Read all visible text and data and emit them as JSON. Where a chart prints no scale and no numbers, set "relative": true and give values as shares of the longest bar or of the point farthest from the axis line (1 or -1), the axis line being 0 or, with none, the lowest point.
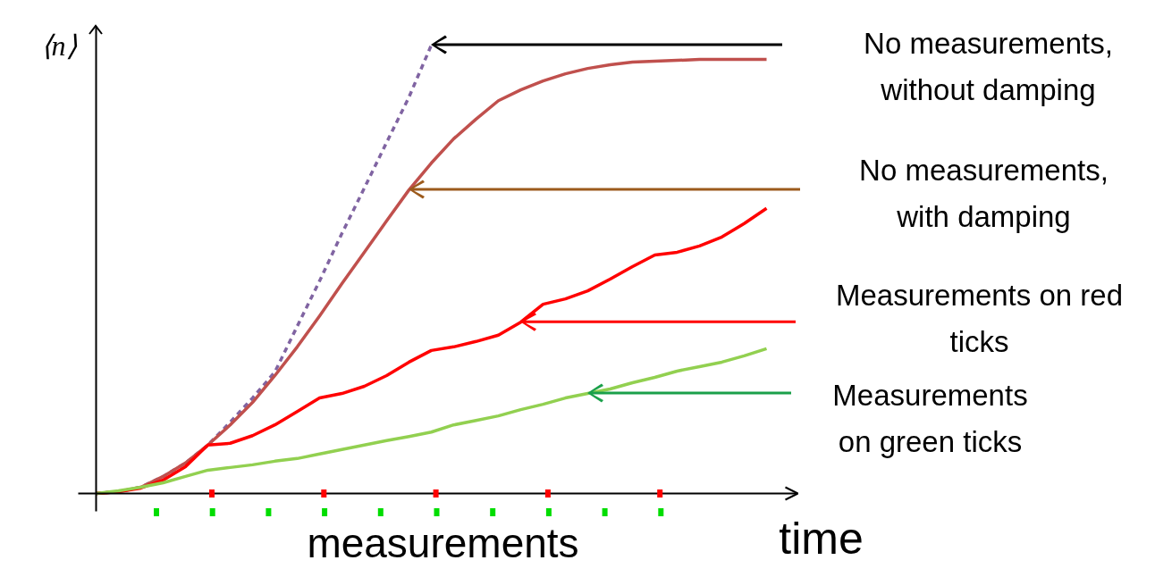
{
  "chart_data": {
    "type": "line",
    "relative": true,
    "ylabel": "⟨n⟩",
    "xlabel": "time",
    "categories": [
      null,
      null,
      null,
      null,
      null,
      null,
      null,
      null,
      null,
      null,
      null,
      null,
      null,
      null,
      null,
      null,
      null,
      null,
      null,
      null,
      null,
      null,
      null,
      null,
      null,
      null,
      null,
      null,
      null,
      null,
      null
    ],
    "series": [
      {
        "color": "#8064a2",
        "line_style": "dashed",
        "values": [
          0,
          0.004,
          0.014,
          0.038,
          0.068,
          0.108,
          0.159,
          0.213,
          0.271,
          0.373,
          0.474,
          0.58,
          0.681,
          0.783,
          0.884,
          1,
          null,
          null,
          null,
          null,
          null,
          null,
          null,
          null,
          null,
          null,
          null,
          null,
          null,
          null,
          null
        ]
      },
      {
        "color": "#c0504d",
        "values": [
          0,
          0.004,
          0.014,
          0.038,
          0.068,
          0.108,
          0.153,
          0.203,
          0.263,
          0.327,
          0.396,
          0.468,
          0.538,
          0.608,
          0.677,
          0.737,
          0.791,
          0.835,
          0.876,
          0.9,
          0.92,
          0.936,
          0.948,
          0.956,
          0.962,
          0.964,
          0.966,
          0.968,
          0.968,
          0.968,
          0.968
        ]
      },
      {
        "color": "#ff0000",
        "values": [
          0,
          0.004,
          0.012,
          0.03,
          0.06,
          0.108,
          0.112,
          0.129,
          0.153,
          0.183,
          0.213,
          0.223,
          0.239,
          0.263,
          0.293,
          0.319,
          0.327,
          0.339,
          0.353,
          0.382,
          0.422,
          0.434,
          0.452,
          0.478,
          0.506,
          0.532,
          0.538,
          0.552,
          0.572,
          0.602,
          0.636
        ]
      },
      {
        "color": "#92d050",
        "values": [
          0,
          0.006,
          0.014,
          0.024,
          0.038,
          0.052,
          0.058,
          0.064,
          0.072,
          0.078,
          0.088,
          0.098,
          0.108,
          0.118,
          0.127,
          0.137,
          0.153,
          0.163,
          0.173,
          0.187,
          0.199,
          0.213,
          0.223,
          0.233,
          0.247,
          0.259,
          0.273,
          0.283,
          0.293,
          0.307,
          0.323
        ]
      }
    ],
    "annotations": [
      "No measurements,\nwithout damping",
      "No measurements,\nwith damping",
      "Measurements on red\nticks",
      "Measurements\non green ticks",
      "measurements"
    ]
  }
}
